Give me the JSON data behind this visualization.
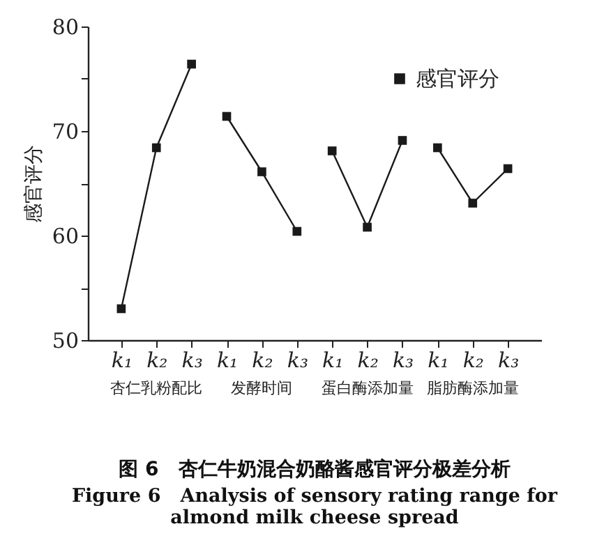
{
  "chart_data": {
    "type": "line",
    "title": "图 6　杏仁牛奶混合奶酪酱感官评分极差分析",
    "subtitle": "Figure 6　Analysis of sensory rating range for almond milk cheese spread",
    "ylabel": "感官评分",
    "categories": [
      "k₁",
      "k₂",
      "k₃",
      "k₁",
      "k₂",
      "k₃",
      "k₁",
      "k₂",
      "k₃",
      "k₁",
      "k₂",
      "k₃"
    ],
    "annotations": [
      "杏仁乳粉配比",
      "发酵时间",
      "蛋白酶添加量",
      "脂肪酶添加量"
    ],
    "series": [
      {
        "name": "感官评分",
        "color": "#1a1a1a",
        "values": [
          53.0,
          68.4,
          76.4,
          null,
          null,
          null,
          null,
          null,
          null,
          null,
          null,
          null
        ]
      },
      {
        "color": "#1a1a1a",
        "values": [
          null,
          null,
          null,
          71.4,
          66.1,
          60.4,
          null,
          null,
          null,
          null,
          null,
          null
        ]
      },
      {
        "color": "#1a1a1a",
        "values": [
          null,
          null,
          null,
          null,
          null,
          null,
          68.1,
          60.8,
          69.1,
          null,
          null,
          null
        ]
      },
      {
        "color": "#1a1a1a",
        "values": [
          null,
          null,
          null,
          null,
          null,
          null,
          null,
          null,
          null,
          68.4,
          63.1,
          66.4
        ]
      }
    ],
    "ylim": [
      50,
      80
    ],
    "yticks": [
      50,
      {
        "value": 55,
        "label": null
      },
      60,
      {
        "value": 65,
        "label": null
      },
      70,
      {
        "value": 75,
        "label": null
      },
      80
    ],
    "grid": false,
    "legend": "top right",
    "marker": "square",
    "line_style": "solid"
  }
}
